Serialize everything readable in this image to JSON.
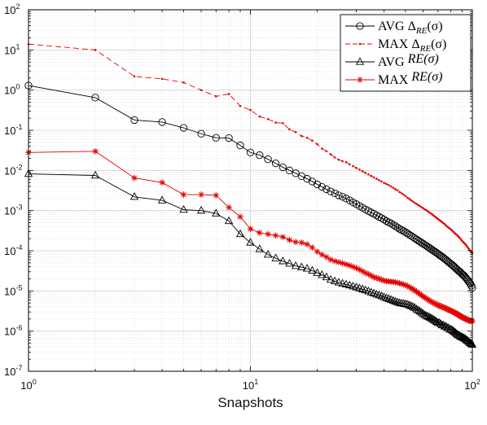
{
  "chart_data": {
    "type": "line",
    "title": "",
    "xlabel": "Snapshots",
    "ylabel": "",
    "xscale": "log",
    "yscale": "log",
    "xlim": [
      1,
      100
    ],
    "ylim": [
      1e-07,
      100
    ],
    "grid": true,
    "minor_grid": true,
    "legend_position": "top-right",
    "x_tick_labels": [
      {
        "value": 1,
        "base": "10",
        "exp": "0"
      },
      {
        "value": 10,
        "base": "10",
        "exp": "1"
      },
      {
        "value": 100,
        "base": "10",
        "exp": "2"
      }
    ],
    "y_tick_labels": [
      {
        "value": 100,
        "base": "10",
        "exp": "2"
      },
      {
        "value": 10,
        "base": "10",
        "exp": "1"
      },
      {
        "value": 1,
        "base": "10",
        "exp": "0"
      },
      {
        "value": 0.1,
        "base": "10",
        "exp": "-1"
      },
      {
        "value": 0.01,
        "base": "10",
        "exp": "-2"
      },
      {
        "value": 0.001,
        "base": "10",
        "exp": "-3"
      },
      {
        "value": 0.0001,
        "base": "10",
        "exp": "-4"
      },
      {
        "value": 1e-05,
        "base": "10",
        "exp": "-5"
      },
      {
        "value": 1e-06,
        "base": "10",
        "exp": "-6"
      },
      {
        "value": 1e-07,
        "base": "10",
        "exp": "-7"
      }
    ],
    "x": [
      1,
      2,
      3,
      4,
      5,
      6,
      7,
      8,
      9,
      10,
      11,
      12,
      13,
      14,
      15,
      16,
      17,
      18,
      19,
      20,
      21,
      22,
      23,
      24,
      25,
      26,
      27,
      28,
      29,
      30,
      31,
      32,
      33,
      34,
      35,
      36,
      37,
      38,
      39,
      40,
      41,
      42,
      43,
      44,
      45,
      46,
      47,
      48,
      49,
      50,
      51,
      52,
      53,
      54,
      55,
      56,
      57,
      58,
      59,
      60,
      61,
      62,
      63,
      64,
      65,
      66,
      67,
      68,
      69,
      70,
      71,
      72,
      73,
      74,
      75,
      76,
      77,
      78,
      79,
      80,
      81,
      82,
      83,
      84,
      85,
      86,
      87,
      88,
      89,
      90,
      91,
      92,
      93,
      94,
      95,
      96,
      97,
      98,
      99,
      100
    ],
    "series": [
      {
        "name_main": "AVG Δ",
        "name_sub": "RE",
        "name_suffix": "(σ)",
        "color": "#000000",
        "line_style": "solid",
        "marker": "circle",
        "values": [
          1.3,
          0.65,
          0.18,
          0.16,
          0.115,
          0.082,
          0.065,
          0.064,
          0.042,
          0.028,
          0.024,
          0.019,
          0.015,
          0.012,
          0.01,
          0.0085,
          0.0072,
          0.0062,
          0.0053,
          0.0045,
          0.0039,
          0.0034,
          0.003,
          0.0027,
          0.0024,
          0.0022,
          0.002,
          0.0018,
          0.0016,
          0.00145,
          0.0013,
          0.00118,
          0.00107,
          0.00098,
          0.0009,
          0.00083,
          0.00076,
          0.0007,
          0.00065,
          0.0006,
          0.00055,
          0.00051,
          0.00048,
          0.00044,
          0.00041,
          0.00038,
          0.00035,
          0.00033,
          0.00031,
          0.00029,
          0.00027,
          0.00025,
          0.000235,
          0.00022,
          0.000205,
          0.000192,
          0.00018,
          0.000169,
          0.000159,
          0.00015,
          0.000141,
          0.000133,
          0.000125,
          0.000118,
          0.000111,
          0.000105,
          9.9e-05,
          9.4e-05,
          8.9e-05,
          8.4e-05,
          7.9e-05,
          7.5e-05,
          7.1e-05,
          6.7e-05,
          6.3e-05,
          6e-05,
          5.6e-05,
          5.3e-05,
          5e-05,
          4.7e-05,
          4.5e-05,
          4.2e-05,
          4e-05,
          3.7e-05,
          3.5e-05,
          3.3e-05,
          3.1e-05,
          3e-05,
          2.8e-05,
          2.6e-05,
          2.5e-05,
          2.35e-05,
          2.2e-05,
          2.05e-05,
          1.9e-05,
          1.75e-05,
          1.6e-05,
          1.5e-05,
          1.35e-05,
          1.2e-05
        ]
      },
      {
        "name_main": "MAX Δ",
        "name_sub": "RE",
        "name_suffix": "(σ)",
        "color": "#e00000",
        "line_style": "dashed",
        "marker": "point",
        "values": [
          14,
          10,
          2.2,
          1.9,
          1.55,
          1.0,
          0.7,
          0.8,
          0.4,
          0.32,
          0.22,
          0.19,
          0.155,
          0.15,
          0.105,
          0.09,
          0.072,
          0.065,
          0.055,
          0.045,
          0.035,
          0.03,
          0.025,
          0.021,
          0.0185,
          0.017,
          0.016,
          0.0142,
          0.0128,
          0.0115,
          0.0105,
          0.0095,
          0.0087,
          0.008,
          0.0073,
          0.0067,
          0.0062,
          0.0057,
          0.0053,
          0.0049,
          0.0046,
          0.0043,
          0.004,
          0.0037,
          0.0034,
          0.0032,
          0.0029,
          0.0027,
          0.0025,
          0.0023,
          0.0021,
          0.00195,
          0.0018,
          0.00168,
          0.00157,
          0.00147,
          0.00138,
          0.0013,
          0.00122,
          0.00115,
          0.00108,
          0.00102,
          0.00096,
          0.0009,
          0.00085,
          0.0008,
          0.00075,
          0.0007,
          0.00066,
          0.00062,
          0.00058,
          0.00055,
          0.00052,
          0.00049,
          0.00046,
          0.00043,
          0.0004,
          0.00038,
          0.00036,
          0.00034,
          0.00032,
          0.0003,
          0.00028,
          0.000265,
          0.00025,
          0.000235,
          0.00022,
          0.000205,
          0.00019,
          0.000175,
          0.000165,
          0.000155,
          0.000145,
          0.000135,
          0.000125,
          0.000115,
          0.000107,
          0.0001,
          9.3e-05,
          8.7e-05
        ]
      },
      {
        "name_main": "AVG ",
        "name_sub": "",
        "name_suffix": "RE(σ)",
        "color": "#000000",
        "line_style": "solid",
        "marker": "triangle",
        "values": [
          0.0082,
          0.0075,
          0.0022,
          0.0018,
          0.00105,
          0.001,
          0.00085,
          0.00055,
          0.00026,
          0.00016,
          0.00011,
          8e-05,
          6.5e-05,
          5.5e-05,
          4.8e-05,
          4.2e-05,
          3.9e-05,
          3.6e-05,
          3.2e-05,
          2.8e-05,
          2.5e-05,
          2.2e-05,
          1.9e-05,
          1.75e-05,
          1.62e-05,
          1.52e-05,
          1.45e-05,
          1.38e-05,
          1.3e-05,
          1.23e-05,
          1.16e-05,
          1.1e-05,
          1.04e-05,
          9.8e-06,
          9.2e-06,
          8.7e-06,
          8.2e-06,
          7.8e-06,
          7.4e-06,
          7e-06,
          6.6e-06,
          6.3e-06,
          6e-06,
          5.7e-06,
          5.4e-06,
          5.2e-06,
          5e-06,
          4.9e-06,
          4.8e-06,
          4.7e-06,
          4.6e-06,
          4.4e-06,
          4.2e-06,
          4e-06,
          3.8e-06,
          3.5e-06,
          3.3e-06,
          3.1e-06,
          2.9e-06,
          2.7e-06,
          2.5e-06,
          2.4e-06,
          2.3e-06,
          2.2e-06,
          2.1e-06,
          2e-06,
          1.9e-06,
          1.8e-06,
          1.7e-06,
          1.6e-06,
          1.6e-06,
          1.5e-06,
          1.4e-06,
          1.4e-06,
          1.3e-06,
          1.3e-06,
          1.2e-06,
          1.2e-06,
          1.1e-06,
          1.1e-06,
          1.05e-06,
          1e-06,
          9.5e-07,
          9e-07,
          8.5e-07,
          8e-07,
          7.8e-07,
          7.5e-07,
          7.2e-07,
          7e-07,
          6.8e-07,
          6.6e-07,
          6.3e-07,
          6e-07,
          5.8e-07,
          5.5e-07,
          5.2e-07,
          5e-07,
          4.8e-07,
          4.6e-07
        ]
      },
      {
        "name_main": "MAX ",
        "name_sub": "",
        "name_suffix": "RE(σ)",
        "color": "#e00000",
        "line_style": "solid",
        "marker": "asterisk",
        "values": [
          0.028,
          0.03,
          0.0065,
          0.005,
          0.0025,
          0.0025,
          0.0024,
          0.0012,
          0.0007,
          0.00035,
          0.00028,
          0.00026,
          0.00024,
          0.00022,
          0.000185,
          0.000165,
          0.00016,
          0.000145,
          0.00012,
          9.5e-05,
          8e-05,
          7e-05,
          6e-05,
          5.5e-05,
          5.2e-05,
          4.9e-05,
          4.6e-05,
          4.3e-05,
          4e-05,
          3.7e-05,
          3.4e-05,
          3.1e-05,
          2.8e-05,
          2.6e-05,
          2.4e-05,
          2.2e-05,
          2.1e-05,
          2e-05,
          1.9e-05,
          1.8e-05,
          1.75e-05,
          1.72e-05,
          1.7e-05,
          1.68e-05,
          1.65e-05,
          1.6e-05,
          1.55e-05,
          1.5e-05,
          1.45e-05,
          1.4e-05,
          1.32e-05,
          1.25e-05,
          1.18e-05,
          1.1e-05,
          1.03e-05,
          9.6e-06,
          9e-06,
          8.4e-06,
          7.8e-06,
          7.3e-06,
          6.9e-06,
          6.5e-06,
          6.1e-06,
          5.8e-06,
          5.5e-06,
          5.2e-06,
          5e-06,
          4.8e-06,
          4.6e-06,
          4.4e-06,
          4.3e-06,
          4.2e-06,
          4e-06,
          3.9e-06,
          3.8e-06,
          3.7e-06,
          3.5e-06,
          3.4e-06,
          3.3e-06,
          3.2e-06,
          3.1e-06,
          3e-06,
          2.9e-06,
          2.8e-06,
          2.7e-06,
          2.6e-06,
          2.5e-06,
          2.4e-06,
          2.3e-06,
          2.2e-06,
          2.2e-06,
          2.1e-06,
          2e-06,
          2e-06,
          1.9e-06,
          1.9e-06,
          1.8e-06,
          1.8e-06,
          1.8e-06,
          1.8e-06
        ]
      }
    ]
  }
}
